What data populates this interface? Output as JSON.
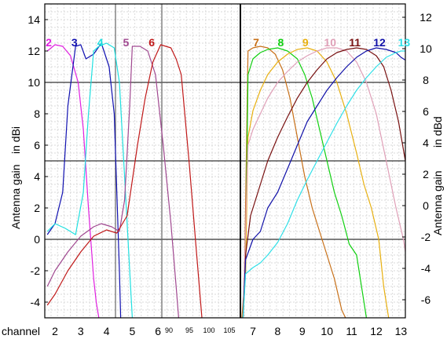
{
  "chart_data": {
    "type": "line",
    "left_axis": {
      "label_part1": "Antenna gain",
      "label_part2": "in dBi",
      "ylim": [
        -5,
        15
      ],
      "ticks": [
        -4,
        -2,
        0,
        2,
        4,
        6,
        8,
        10,
        12,
        14
      ]
    },
    "right_axis": {
      "label_part1": "Antenna gain",
      "label_part2": "in dBd",
      "ticks": [
        -6,
        -4,
        -2,
        0,
        2,
        4,
        6,
        8,
        10,
        12
      ]
    },
    "x_axis": {
      "name": "channel",
      "panel_a_ticks": [
        "2",
        "3",
        "4",
        "5",
        "6"
      ],
      "panel_a_small_ticks": [
        "90",
        "95",
        "100",
        "105"
      ],
      "panel_b_ticks": [
        "7",
        "8",
        "9",
        "10",
        "11",
        "12",
        "13"
      ]
    },
    "grid": true,
    "series": [
      {
        "name": "2",
        "color": "#e020e0",
        "panel": "a",
        "x": [
          1.7,
          2.0,
          2.3,
          2.6,
          2.9,
          3.1,
          3.3,
          3.5,
          3.6,
          3.7
        ],
        "y": [
          12.0,
          12.4,
          12.3,
          11.7,
          10.0,
          7.0,
          2.0,
          -2.5,
          -4.0,
          -5.0
        ]
      },
      {
        "name": "3",
        "color": "#1010b0",
        "panel": "a",
        "x": [
          1.7,
          2.0,
          2.3,
          2.5,
          2.8,
          3.0,
          3.2,
          3.5,
          3.8,
          4.1,
          4.3,
          4.4,
          4.5,
          4.55
        ],
        "y": [
          0.3,
          1.0,
          3.0,
          8.5,
          12.3,
          12.4,
          11.5,
          11.8,
          12.5,
          11.0,
          8.0,
          3.0,
          -2.0,
          -5.0
        ]
      },
      {
        "name": "4",
        "color": "#20e0e0",
        "panel": "a",
        "x": [
          1.7,
          2.0,
          2.4,
          2.8,
          3.1,
          3.3,
          3.5,
          3.7,
          4.0,
          4.3,
          4.5,
          4.7,
          4.9,
          5.0
        ],
        "y": [
          0.5,
          1.0,
          0.7,
          0.3,
          3.0,
          8.0,
          12.0,
          12.3,
          12.5,
          12.2,
          10.0,
          4.0,
          -2.0,
          -5.0
        ]
      },
      {
        "name": "5",
        "color": "#a04890",
        "panel": "a",
        "x": [
          1.7,
          2.0,
          2.5,
          3.0,
          3.5,
          3.8,
          4.2,
          4.5,
          4.7,
          4.9,
          5.0,
          5.3,
          5.6,
          5.9,
          6.2,
          6.5,
          6.7,
          6.8
        ],
        "y": [
          -3.0,
          -2.0,
          -0.8,
          0.2,
          0.8,
          1.0,
          0.8,
          0.5,
          2.5,
          8.5,
          12.3,
          12.3,
          12.0,
          10.5,
          6.0,
          1.0,
          -3.0,
          -5.0
        ]
      },
      {
        "name": "6",
        "color": "#c01818",
        "panel": "a",
        "x": [
          1.7,
          2.0,
          2.5,
          3.0,
          3.5,
          4.0,
          4.4,
          4.8,
          5.2,
          5.5,
          5.8,
          6.1,
          6.5,
          6.7,
          6.9,
          7.2,
          7.5,
          7.7
        ],
        "y": [
          -4.2,
          -3.5,
          -2.0,
          -0.8,
          0.2,
          0.6,
          0.4,
          1.5,
          6.0,
          9.0,
          11.3,
          12.4,
          12.2,
          11.5,
          10.5,
          5.0,
          -1.0,
          -5.0
        ]
      },
      {
        "name": "7",
        "color": "#c87018",
        "panel": "b",
        "x": [
          6.55,
          6.65,
          6.8,
          7.0,
          7.3,
          7.6,
          7.9,
          8.2,
          8.5,
          8.8,
          9.1,
          9.4,
          9.7,
          10.0,
          10.3,
          10.6,
          10.75
        ],
        "y": [
          -5.0,
          -3.0,
          12.0,
          12.2,
          12.3,
          12.2,
          11.8,
          10.8,
          9.0,
          6.5,
          4.0,
          2.0,
          0.5,
          -1.0,
          -2.5,
          -4.5,
          -5.0
        ]
      },
      {
        "name": "8",
        "color": "#10d010",
        "panel": "b",
        "x": [
          6.6,
          6.7,
          6.8,
          7.0,
          7.3,
          7.6,
          8.0,
          8.4,
          8.8,
          9.1,
          9.4,
          9.7,
          10.0,
          10.3,
          10.6,
          10.9,
          11.2,
          11.5,
          11.6
        ],
        "y": [
          -5.0,
          -2.0,
          10.5,
          11.5,
          11.9,
          12.1,
          12.2,
          12.0,
          11.5,
          10.5,
          9.0,
          7.0,
          5.0,
          3.0,
          1.5,
          -0.3,
          -1.0,
          -4.0,
          -5.0
        ]
      },
      {
        "name": "9",
        "color": "#e8b010",
        "panel": "b",
        "x": [
          6.6,
          6.7,
          6.8,
          7.0,
          7.3,
          7.6,
          8.0,
          8.4,
          8.8,
          9.2,
          9.6,
          10.0,
          10.4,
          10.8,
          11.2,
          11.5,
          11.8,
          12.1,
          12.3,
          12.5
        ],
        "y": [
          -5.0,
          -2.0,
          6.5,
          8.2,
          9.5,
          10.5,
          11.3,
          11.8,
          12.1,
          12.2,
          12.0,
          11.3,
          10.0,
          8.0,
          5.5,
          3.5,
          2.0,
          0.0,
          -3.0,
          -5.0
        ]
      },
      {
        "name": "10",
        "color": "#e0a0b8",
        "panel": "b",
        "x": [
          6.6,
          6.8,
          7.0,
          7.3,
          7.6,
          8.0,
          8.4,
          8.8,
          9.2,
          9.6,
          10.0,
          10.4,
          10.8,
          11.2,
          11.6,
          12.0,
          12.4,
          12.8,
          13.1,
          13.2
        ],
        "y": [
          -5.0,
          6.0,
          7.0,
          8.0,
          9.0,
          10.0,
          10.7,
          11.3,
          11.7,
          12.0,
          12.2,
          12.2,
          12.0,
          11.3,
          10.0,
          8.0,
          5.0,
          2.0,
          0.0,
          -1.0
        ]
      },
      {
        "name": "11",
        "color": "#781010",
        "panel": "b",
        "x": [
          6.6,
          6.7,
          6.9,
          7.2,
          7.6,
          8.0,
          8.4,
          8.8,
          9.2,
          9.6,
          10.0,
          10.4,
          10.8,
          11.2,
          11.6,
          12.0,
          12.3,
          12.6,
          12.9,
          13.2
        ],
        "y": [
          -5.0,
          -1.0,
          1.5,
          3.0,
          5.0,
          6.5,
          7.8,
          9.0,
          10.0,
          10.8,
          11.5,
          11.9,
          12.1,
          12.2,
          12.1,
          11.7,
          11.0,
          9.5,
          7.5,
          4.8
        ]
      },
      {
        "name": "12",
        "color": "#1010a8",
        "panel": "b",
        "x": [
          6.6,
          6.7,
          7.0,
          7.3,
          7.6,
          8.0,
          8.4,
          8.8,
          9.2,
          9.6,
          10.0,
          10.4,
          10.8,
          11.2,
          11.6,
          12.0,
          12.4,
          12.8,
          13.0,
          13.2
        ],
        "y": [
          -5.0,
          -1.3,
          0.0,
          0.5,
          2.0,
          3.0,
          4.5,
          6.0,
          7.5,
          8.5,
          9.5,
          10.3,
          11.0,
          11.6,
          12.0,
          12.2,
          12.1,
          11.9,
          11.6,
          11.4
        ]
      },
      {
        "name": "13",
        "color": "#30e0e8",
        "panel": "b",
        "x": [
          6.6,
          6.7,
          7.0,
          7.3,
          7.6,
          8.0,
          8.4,
          8.8,
          9.2,
          9.6,
          10.0,
          10.4,
          10.8,
          11.2,
          11.6,
          12.0,
          12.4,
          12.8,
          13.0,
          13.2
        ],
        "y": [
          -5.0,
          -2.2,
          -1.8,
          -1.5,
          -1.0,
          -0.2,
          1.0,
          2.5,
          3.8,
          5.0,
          6.2,
          7.4,
          8.5,
          9.5,
          10.3,
          11.0,
          11.6,
          11.9,
          12.0,
          12.0
        ]
      }
    ]
  }
}
